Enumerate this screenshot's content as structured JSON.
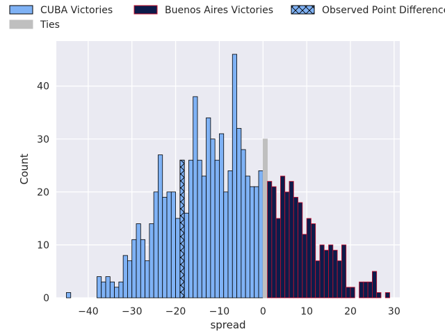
{
  "chart_data": {
    "type": "bar",
    "title": "",
    "xlabel": "spread",
    "ylabel": "Count",
    "xlim": [
      -47.3,
      31.3
    ],
    "ylim": [
      0,
      48.5
    ],
    "xticks": [
      -40,
      -30,
      -20,
      -10,
      0,
      10,
      20,
      30
    ],
    "yticks": [
      0,
      10,
      20,
      30,
      40
    ],
    "xtick_labels": [
      "−40",
      "−30",
      "−20",
      "−10",
      "0",
      "10",
      "20",
      "30"
    ],
    "ytick_labels": [
      "0",
      "10",
      "20",
      "30",
      "40"
    ],
    "grid": true,
    "legend_position": "top",
    "bin_width": 1,
    "legend": [
      {
        "label": "CUBA Victories",
        "fill": "#7fb2f5",
        "edge": "#000000",
        "hatch": false
      },
      {
        "label": "Buenos Aires Victories",
        "fill": "#0d1b4a",
        "edge": "#c8102e",
        "hatch": false
      },
      {
        "label": "Observed Point Difference",
        "fill": "#7fb2f5",
        "edge": "#000000",
        "hatch": true
      },
      {
        "label": "Ties",
        "fill": "#bfbfbf",
        "edge": "#bfbfbf",
        "hatch": false
      }
    ],
    "series": [
      {
        "name": "CUBA Victories",
        "color": "#7fb2f5",
        "edgecolor": "#000000",
        "bins": [
          [
            -45,
            1
          ],
          [
            -38,
            4
          ],
          [
            -37,
            3
          ],
          [
            -36,
            4
          ],
          [
            -35,
            3
          ],
          [
            -34,
            2
          ],
          [
            -33,
            3
          ],
          [
            -32,
            8
          ],
          [
            -31,
            7
          ],
          [
            -30,
            11
          ],
          [
            -29,
            14
          ],
          [
            -28,
            11
          ],
          [
            -27,
            7
          ],
          [
            -26,
            14
          ],
          [
            -25,
            20
          ],
          [
            -24,
            27
          ],
          [
            -23,
            19
          ],
          [
            -22,
            20
          ],
          [
            -21,
            20
          ],
          [
            -20,
            15
          ],
          [
            -19,
            26
          ],
          [
            -18,
            16
          ],
          [
            -17,
            26
          ],
          [
            -16,
            38
          ],
          [
            -15,
            26
          ],
          [
            -14,
            23
          ],
          [
            -13,
            34
          ],
          [
            -12,
            30
          ],
          [
            -11,
            26
          ],
          [
            -10,
            31
          ],
          [
            -9,
            20
          ],
          [
            -8,
            24
          ],
          [
            -7,
            46
          ],
          [
            -6,
            32
          ],
          [
            -5,
            28
          ],
          [
            -4,
            23
          ],
          [
            -3,
            21
          ],
          [
            -2,
            21
          ],
          [
            -1,
            24
          ]
        ]
      },
      {
        "name": "Ties",
        "color": "#bfbfbf",
        "edgecolor": "#bfbfbf",
        "bins": [
          [
            0,
            30
          ]
        ]
      },
      {
        "name": "Buenos Aires Victories",
        "color": "#0d1b4a",
        "edgecolor": "#c8102e",
        "bins": [
          [
            1,
            22
          ],
          [
            2,
            21
          ],
          [
            3,
            15
          ],
          [
            4,
            23
          ],
          [
            5,
            20
          ],
          [
            6,
            22
          ],
          [
            7,
            19
          ],
          [
            8,
            18
          ],
          [
            9,
            12
          ],
          [
            10,
            15
          ],
          [
            11,
            14
          ],
          [
            12,
            7
          ],
          [
            13,
            10
          ],
          [
            14,
            9
          ],
          [
            15,
            10
          ],
          [
            16,
            9
          ],
          [
            17,
            7
          ],
          [
            18,
            10
          ],
          [
            19,
            2
          ],
          [
            20,
            2
          ],
          [
            22,
            3
          ],
          [
            23,
            3
          ],
          [
            24,
            3
          ],
          [
            25,
            5
          ],
          [
            26,
            1
          ],
          [
            28,
            1
          ]
        ]
      }
    ],
    "observed_point_difference": {
      "name": "Observed Point Difference",
      "x": -19,
      "count": 26
    }
  }
}
